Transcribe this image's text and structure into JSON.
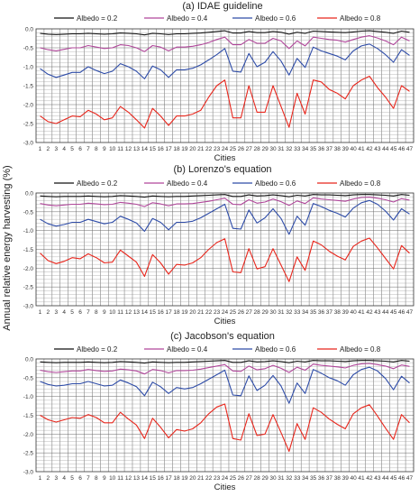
{
  "figure": {
    "ylabel": "Annual relative energy harvesting (%)"
  },
  "chart_data": [
    {
      "type": "line",
      "title": "(a) IDAE guideline",
      "xlabel": "Cities",
      "ylabel": "Annual relative energy harvesting (%)",
      "ylim": [
        -3.0,
        0.0
      ],
      "yticks": [
        "0.0",
        "-0.5",
        "-1.0",
        "-1.5",
        "-2.0",
        "-2.5",
        "-3.0"
      ],
      "grid": true,
      "legend": "top",
      "x": [
        1,
        2,
        3,
        4,
        5,
        6,
        7,
        8,
        9,
        10,
        11,
        12,
        13,
        14,
        15,
        16,
        17,
        18,
        19,
        20,
        21,
        22,
        23,
        24,
        25,
        26,
        27,
        28,
        29,
        30,
        31,
        32,
        33,
        34,
        35,
        36,
        37,
        38,
        39,
        40,
        41,
        42,
        43,
        44,
        45,
        46,
        47
      ],
      "series": [
        {
          "name": "Albedo = 0.2",
          "color": "#111111",
          "values": [
            -0.12,
            -0.14,
            -0.15,
            -0.14,
            -0.13,
            -0.13,
            -0.12,
            -0.13,
            -0.14,
            -0.13,
            -0.11,
            -0.12,
            -0.13,
            -0.16,
            -0.12,
            -0.13,
            -0.15,
            -0.13,
            -0.13,
            -0.12,
            -0.11,
            -0.09,
            -0.07,
            -0.05,
            -0.11,
            -0.11,
            -0.07,
            -0.1,
            -0.1,
            -0.07,
            -0.09,
            -0.14,
            -0.09,
            -0.12,
            -0.06,
            -0.07,
            -0.08,
            -0.09,
            -0.1,
            -0.08,
            -0.06,
            -0.05,
            -0.07,
            -0.09,
            -0.12,
            -0.06,
            -0.09
          ]
        },
        {
          "name": "Albedo = 0.4",
          "color": "#b0469a",
          "values": [
            -0.5,
            -0.55,
            -0.58,
            -0.54,
            -0.5,
            -0.5,
            -0.44,
            -0.48,
            -0.52,
            -0.5,
            -0.42,
            -0.44,
            -0.5,
            -0.6,
            -0.44,
            -0.48,
            -0.58,
            -0.48,
            -0.48,
            -0.46,
            -0.42,
            -0.36,
            -0.28,
            -0.22,
            -0.42,
            -0.42,
            -0.28,
            -0.38,
            -0.38,
            -0.25,
            -0.32,
            -0.52,
            -0.32,
            -0.45,
            -0.22,
            -0.25,
            -0.28,
            -0.3,
            -0.35,
            -0.28,
            -0.22,
            -0.18,
            -0.24,
            -0.32,
            -0.42,
            -0.22,
            -0.32
          ]
        },
        {
          "name": "Albedo = 0.6",
          "color": "#2e4ca8",
          "values": [
            -1.05,
            -1.2,
            -1.28,
            -1.22,
            -1.15,
            -1.15,
            -1.0,
            -1.1,
            -1.18,
            -1.12,
            -0.92,
            -1.0,
            -1.12,
            -1.32,
            -0.98,
            -1.08,
            -1.28,
            -1.08,
            -1.08,
            -1.04,
            -0.95,
            -0.82,
            -0.68,
            -0.52,
            -1.12,
            -1.14,
            -0.65,
            -1.0,
            -0.88,
            -0.6,
            -0.85,
            -1.22,
            -0.78,
            -1.02,
            -0.48,
            -0.58,
            -0.65,
            -0.72,
            -0.82,
            -0.58,
            -0.45,
            -0.4,
            -0.52,
            -0.68,
            -0.88,
            -0.55,
            -0.7
          ]
        },
        {
          "name": "Albedo = 0.8",
          "color": "#e8261c",
          "values": [
            -2.3,
            -2.45,
            -2.5,
            -2.4,
            -2.3,
            -2.32,
            -2.15,
            -2.25,
            -2.4,
            -2.35,
            -2.05,
            -2.2,
            -2.4,
            -2.62,
            -2.1,
            -2.3,
            -2.55,
            -2.3,
            -2.3,
            -2.25,
            -2.15,
            -1.8,
            -1.5,
            -1.35,
            -2.35,
            -2.35,
            -1.5,
            -2.2,
            -2.2,
            -1.5,
            -2.05,
            -2.6,
            -1.7,
            -2.25,
            -1.35,
            -1.4,
            -1.6,
            -1.7,
            -1.85,
            -1.5,
            -1.35,
            -1.25,
            -1.55,
            -1.8,
            -2.1,
            -1.5,
            -1.65
          ]
        }
      ]
    },
    {
      "type": "line",
      "title": "(b) Lorenzo's equation",
      "xlabel": "Cities",
      "ylabel": "Annual relative energy harvesting (%)",
      "ylim": [
        -3.0,
        0.0
      ],
      "yticks": [
        "0.0",
        "-0.5",
        "-1.0",
        "-1.5",
        "-2.0",
        "-2.5",
        "-3.0"
      ],
      "grid": true,
      "legend": "top",
      "x": [
        1,
        2,
        3,
        4,
        5,
        6,
        7,
        8,
        9,
        10,
        11,
        12,
        13,
        14,
        15,
        16,
        17,
        18,
        19,
        20,
        21,
        22,
        23,
        24,
        25,
        26,
        27,
        28,
        29,
        30,
        31,
        32,
        33,
        34,
        35,
        36,
        37,
        38,
        39,
        40,
        41,
        42,
        43,
        44,
        45,
        46,
        47
      ],
      "series": [
        {
          "name": "Albedo = 0.2",
          "color": "#111111",
          "values": [
            -0.08,
            -0.09,
            -0.1,
            -0.09,
            -0.09,
            -0.09,
            -0.08,
            -0.09,
            -0.1,
            -0.09,
            -0.07,
            -0.08,
            -0.09,
            -0.11,
            -0.08,
            -0.09,
            -0.1,
            -0.09,
            -0.09,
            -0.08,
            -0.07,
            -0.06,
            -0.05,
            -0.04,
            -0.09,
            -0.09,
            -0.05,
            -0.08,
            -0.07,
            -0.05,
            -0.07,
            -0.1,
            -0.06,
            -0.08,
            -0.04,
            -0.05,
            -0.05,
            -0.06,
            -0.07,
            -0.05,
            -0.04,
            -0.04,
            -0.05,
            -0.06,
            -0.08,
            -0.04,
            -0.06
          ]
        },
        {
          "name": "Albedo = 0.4",
          "color": "#b0469a",
          "values": [
            -0.28,
            -0.32,
            -0.34,
            -0.32,
            -0.3,
            -0.3,
            -0.27,
            -0.29,
            -0.31,
            -0.3,
            -0.25,
            -0.27,
            -0.3,
            -0.36,
            -0.26,
            -0.29,
            -0.34,
            -0.29,
            -0.29,
            -0.28,
            -0.25,
            -0.22,
            -0.18,
            -0.14,
            -0.3,
            -0.31,
            -0.18,
            -0.27,
            -0.24,
            -0.16,
            -0.23,
            -0.33,
            -0.21,
            -0.28,
            -0.13,
            -0.16,
            -0.18,
            -0.2,
            -0.22,
            -0.16,
            -0.12,
            -0.11,
            -0.14,
            -0.18,
            -0.24,
            -0.15,
            -0.19
          ]
        },
        {
          "name": "Albedo = 0.6",
          "color": "#2e4ca8",
          "values": [
            -0.7,
            -0.82,
            -0.88,
            -0.84,
            -0.78,
            -0.78,
            -0.7,
            -0.76,
            -0.82,
            -0.78,
            -0.62,
            -0.7,
            -0.8,
            -1.02,
            -0.68,
            -0.78,
            -0.98,
            -0.78,
            -0.78,
            -0.75,
            -0.66,
            -0.54,
            -0.42,
            -0.3,
            -0.94,
            -0.96,
            -0.45,
            -0.8,
            -0.66,
            -0.42,
            -0.68,
            -1.1,
            -0.62,
            -0.86,
            -0.28,
            -0.36,
            -0.46,
            -0.54,
            -0.64,
            -0.4,
            -0.26,
            -0.2,
            -0.3,
            -0.48,
            -0.72,
            -0.42,
            -0.56
          ]
        },
        {
          "name": "Albedo = 0.8",
          "color": "#e8261c",
          "values": [
            -1.6,
            -1.8,
            -1.88,
            -1.82,
            -1.72,
            -1.75,
            -1.62,
            -1.72,
            -1.86,
            -1.84,
            -1.52,
            -1.68,
            -1.84,
            -2.22,
            -1.64,
            -1.86,
            -2.16,
            -1.9,
            -1.92,
            -1.86,
            -1.72,
            -1.5,
            -1.32,
            -1.22,
            -2.1,
            -2.12,
            -1.48,
            -2.02,
            -1.96,
            -1.48,
            -1.92,
            -2.36,
            -1.7,
            -2.06,
            -1.28,
            -1.38,
            -1.55,
            -1.68,
            -1.78,
            -1.42,
            -1.28,
            -1.2,
            -1.46,
            -1.74,
            -2.02,
            -1.4,
            -1.6
          ]
        }
      ]
    },
    {
      "type": "line",
      "title": "(c) Jacobson's equation",
      "xlabel": "Cities",
      "ylabel": "Annual relative energy harvesting (%)",
      "ylim": [
        -3.0,
        0.0
      ],
      "yticks": [
        "0.0",
        "-0.5",
        "-1.0",
        "-1.5",
        "-2.0",
        "-2.5",
        "-3.0"
      ],
      "grid": true,
      "legend": "top",
      "x": [
        1,
        2,
        3,
        4,
        5,
        6,
        7,
        8,
        9,
        10,
        11,
        12,
        13,
        14,
        15,
        16,
        17,
        18,
        19,
        20,
        21,
        22,
        23,
        24,
        25,
        26,
        27,
        28,
        29,
        30,
        31,
        32,
        33,
        34,
        35,
        36,
        37,
        38,
        39,
        40,
        41,
        42,
        43,
        44,
        45,
        46,
        47
      ],
      "series": [
        {
          "name": "Albedo = 0.2",
          "color": "#111111",
          "values": [
            -0.08,
            -0.09,
            -0.1,
            -0.09,
            -0.09,
            -0.09,
            -0.08,
            -0.09,
            -0.1,
            -0.09,
            -0.07,
            -0.08,
            -0.09,
            -0.11,
            -0.08,
            -0.09,
            -0.1,
            -0.09,
            -0.09,
            -0.08,
            -0.07,
            -0.06,
            -0.05,
            -0.04,
            -0.09,
            -0.09,
            -0.05,
            -0.08,
            -0.07,
            -0.05,
            -0.07,
            -0.1,
            -0.06,
            -0.08,
            -0.04,
            -0.05,
            -0.05,
            -0.06,
            -0.07,
            -0.05,
            -0.04,
            -0.04,
            -0.05,
            -0.06,
            -0.08,
            -0.04,
            -0.06
          ]
        },
        {
          "name": "Albedo = 0.4",
          "color": "#b0469a",
          "values": [
            -0.3,
            -0.34,
            -0.36,
            -0.34,
            -0.32,
            -0.32,
            -0.28,
            -0.31,
            -0.33,
            -0.32,
            -0.27,
            -0.29,
            -0.32,
            -0.4,
            -0.28,
            -0.31,
            -0.37,
            -0.31,
            -0.31,
            -0.3,
            -0.27,
            -0.23,
            -0.19,
            -0.15,
            -0.32,
            -0.33,
            -0.19,
            -0.29,
            -0.26,
            -0.17,
            -0.25,
            -0.36,
            -0.22,
            -0.3,
            -0.14,
            -0.17,
            -0.19,
            -0.21,
            -0.24,
            -0.17,
            -0.13,
            -0.12,
            -0.15,
            -0.19,
            -0.26,
            -0.16,
            -0.2
          ]
        },
        {
          "name": "Albedo = 0.6",
          "color": "#2e4ca8",
          "values": [
            -0.6,
            -0.68,
            -0.72,
            -0.7,
            -0.66,
            -0.66,
            -0.6,
            -0.66,
            -0.72,
            -0.7,
            -0.56,
            -0.64,
            -0.74,
            -0.98,
            -0.62,
            -0.74,
            -0.92,
            -0.76,
            -0.8,
            -0.76,
            -0.66,
            -0.54,
            -0.42,
            -0.3,
            -0.96,
            -0.98,
            -0.45,
            -0.84,
            -0.7,
            -0.44,
            -0.72,
            -1.18,
            -0.64,
            -0.92,
            -0.28,
            -0.38,
            -0.5,
            -0.58,
            -0.7,
            -0.42,
            -0.28,
            -0.22,
            -0.32,
            -0.52,
            -0.82,
            -0.46,
            -0.64
          ]
        },
        {
          "name": "Albedo = 0.8",
          "color": "#e8261c",
          "values": [
            -1.5,
            -1.62,
            -1.68,
            -1.62,
            -1.56,
            -1.58,
            -1.48,
            -1.56,
            -1.7,
            -1.7,
            -1.42,
            -1.6,
            -1.76,
            -2.12,
            -1.58,
            -1.82,
            -2.1,
            -1.88,
            -1.92,
            -1.86,
            -1.7,
            -1.46,
            -1.28,
            -1.2,
            -2.12,
            -2.16,
            -1.46,
            -2.04,
            -2.0,
            -1.48,
            -1.96,
            -2.46,
            -1.72,
            -2.14,
            -1.3,
            -1.42,
            -1.6,
            -1.74,
            -1.86,
            -1.46,
            -1.3,
            -1.22,
            -1.52,
            -1.84,
            -2.14,
            -1.48,
            -1.7
          ]
        }
      ]
    }
  ]
}
